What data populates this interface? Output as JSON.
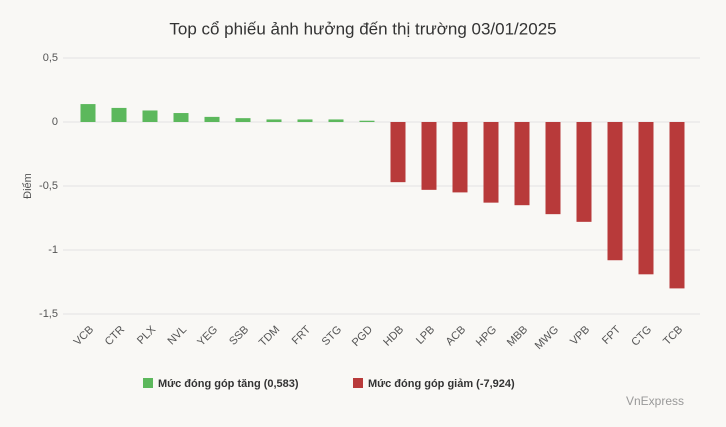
{
  "chart_data": {
    "type": "bar",
    "title": "Top cổ phiếu ảnh hưởng đến thị trường 03/01/2025",
    "y_label": "Điểm",
    "categories": [
      "VCB",
      "CTR",
      "PLX",
      "NVL",
      "YEG",
      "SSB",
      "TDM",
      "FRT",
      "STG",
      "PGD",
      "HDB",
      "LPB",
      "ACB",
      "HPG",
      "MBB",
      "MWG",
      "VPB",
      "FPT",
      "CTG",
      "TCB"
    ],
    "series": [
      {
        "name": "Mức đóng góp tăng (0,583)",
        "color": "#5cb85c",
        "values": [
          0.14,
          0.11,
          0.09,
          0.07,
          0.04,
          0.03,
          0.02,
          0.02,
          0.02,
          0.01,
          null,
          null,
          null,
          null,
          null,
          null,
          null,
          null,
          null,
          null
        ]
      },
      {
        "name": "Mức đóng góp giảm (-7,924)",
        "color": "#b83a3a",
        "values": [
          null,
          null,
          null,
          null,
          null,
          null,
          null,
          null,
          null,
          null,
          -0.47,
          -0.53,
          -0.55,
          -0.63,
          -0.65,
          -0.72,
          -0.78,
          -1.08,
          -1.19,
          -1.3
        ]
      }
    ],
    "ylim": [
      -1.5,
      0.5
    ],
    "yticks": [
      {
        "value": 0.5,
        "label": "0,5"
      },
      0,
      {
        "value": -0.5,
        "label": "-0,5"
      },
      -1,
      {
        "value": -1.5,
        "label": "-1,5"
      }
    ],
    "grid": true,
    "source": "VnExpress"
  }
}
